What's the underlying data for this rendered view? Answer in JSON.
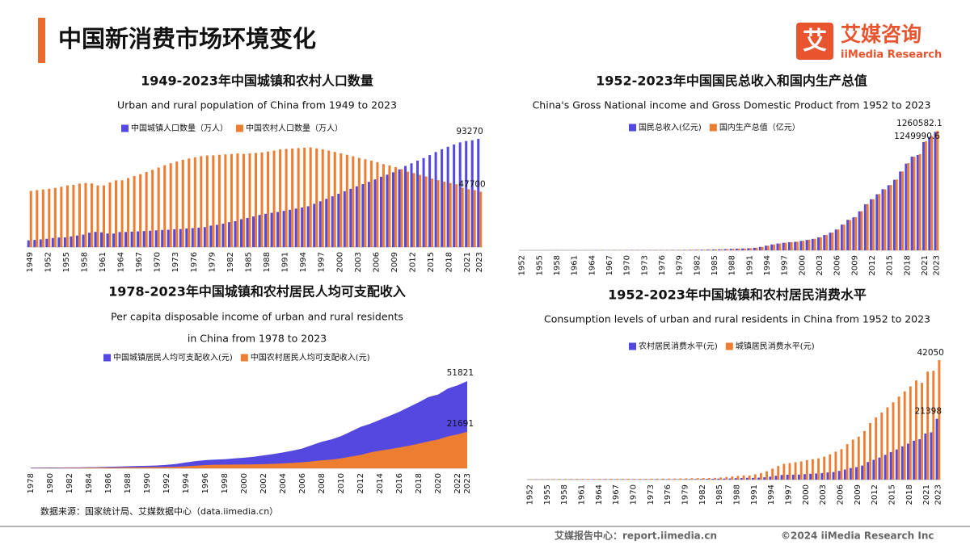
{
  "header": {
    "title": "中国新消费市场环境变化"
  },
  "logo": {
    "mark": "艾",
    "name": "艾媒咨询",
    "en": "iiMedia Research"
  },
  "source": "数据来源：国家统计局、艾媒数据中心（data.iimedia.cn）",
  "footer": {
    "left": "艾媒报告中心：report.iimedia.cn",
    "right": "©2024  iiMedia Research  Inc"
  },
  "chart_data": [
    {
      "type": "bar",
      "title": "1949-2023年中国城镇和农村人口数量",
      "subtitle": [
        "Urban and rural population of China from 1949 to 2023"
      ],
      "categories": [
        "1949",
        null,
        null,
        "1952",
        null,
        null,
        "1955",
        null,
        null,
        "1958",
        null,
        null,
        "1961",
        null,
        null,
        "1964",
        null,
        null,
        "1967",
        null,
        null,
        "1970",
        null,
        null,
        "1973",
        null,
        null,
        "1976",
        null,
        null,
        "1979",
        null,
        null,
        "1982",
        null,
        null,
        "1985",
        null,
        null,
        "1988",
        null,
        null,
        "1991",
        null,
        null,
        "1994",
        null,
        null,
        "1997",
        null,
        null,
        "2000",
        null,
        null,
        "2003",
        null,
        null,
        "2006",
        null,
        null,
        "2009",
        null,
        null,
        "2012",
        null,
        null,
        "2015",
        null,
        null,
        "2018",
        null,
        null,
        "2021",
        null,
        "2023"
      ],
      "series": [
        {
          "name": "中国城镇人口数量（万人）",
          "color": "#5448e0",
          "values": [
            5765,
            6169,
            6632,
            7163,
            7826,
            8249,
            8285,
            9185,
            9949,
            10721,
            12371,
            13073,
            12707,
            11659,
            11646,
            12950,
            13045,
            13313,
            13548,
            13838,
            14117,
            14424,
            14711,
            14935,
            15345,
            15595,
            16030,
            16341,
            16669,
            17245,
            18495,
            19140,
            20171,
            21480,
            22274,
            24017,
            25094,
            26366,
            27674,
            28661,
            29540,
            30195,
            31203,
            32175,
            33173,
            34169,
            35174,
            37304,
            39449,
            41608,
            43748,
            45906,
            48064,
            50212,
            52376,
            54283,
            56212,
            58288,
            60633,
            62403,
            64512,
            66978,
            69927,
            72175,
            74502,
            76738,
            79302,
            81924,
            84343,
            86433,
            88426,
            90220,
            91425,
            92071,
            93270
          ]
        },
        {
          "name": "中国农村人口数量（万人）",
          "color": "#ed7d31",
          "values": [
            48402,
            49106,
            49668,
            50319,
            50970,
            52017,
            53180,
            53643,
            54704,
            55273,
            54836,
            53134,
            53152,
            55636,
            57526,
            57549,
            59493,
            61229,
            62820,
            64696,
            66554,
            68568,
            70518,
            72242,
            73866,
            75264,
            76390,
            77376,
            78305,
            79014,
            79047,
            79565,
            79901,
            80174,
            80734,
            80340,
            80757,
            81141,
            81626,
            82365,
            83164,
            84138,
            84620,
            84996,
            85344,
            85681,
            85947,
            85085,
            84177,
            83153,
            82038,
            80837,
            79563,
            78241,
            76851,
            75705,
            74544,
            73160,
            71496,
            70399,
            68938,
            67113,
            64989,
            63747,
            62224,
            60908,
            59024,
            57661,
            56401,
            55162,
            54108,
            50992,
            49835,
            49104,
            47700
          ]
        }
      ]
    },
    {
      "type": "bar",
      "title": "1952-2023年中国国民总收入和国内生产总值",
      "subtitle": [
        "China's Gross National income and Gross Domestic Product from 1952 to 2023"
      ],
      "categories": [
        "1952",
        null,
        null,
        "1955",
        null,
        null,
        "1958",
        null,
        null,
        "1961",
        null,
        null,
        "1964",
        null,
        null,
        "1967",
        null,
        null,
        "1970",
        null,
        null,
        "1973",
        null,
        null,
        "1976",
        null,
        null,
        "1979",
        null,
        null,
        "1982",
        null,
        null,
        "1985",
        null,
        null,
        "1988",
        null,
        null,
        "1991",
        null,
        null,
        "1994",
        null,
        null,
        "1997",
        null,
        null,
        "2000",
        null,
        null,
        "2003",
        null,
        null,
        "2006",
        null,
        null,
        "2009",
        null,
        null,
        "2012",
        null,
        null,
        "2015",
        null,
        null,
        "2018",
        null,
        null,
        "2021",
        null,
        "2023"
      ],
      "series": [
        {
          "name": "国民总收入(亿元)",
          "color": "#5448e0",
          "values": [
            679,
            824,
            859,
            910,
            1028,
            1069,
            1308,
            1440,
            1457,
            1220,
            1150,
            1233,
            1454,
            1716,
            1868,
            1773,
            1723,
            1937,
            2253,
            2427,
            2518,
            2721,
            2790,
            2997,
            2944,
            3202,
            3679,
            4101,
            4588,
            4933,
            5374,
            6021,
            7277,
            9101,
            10362,
            12164,
            15175,
            17180,
            18873,
            22006,
            27195,
            35673,
            48638,
            61340,
            71814,
            79715,
            85196,
            89677,
            99066,
            109276,
            120480,
            136576,
            161415,
            185999,
            219029,
            270704,
            321229,
            347934,
            411265,
            484753,
            539117,
            590422,
            644791,
            686256,
            743585,
            831381,
            914327,
            988529,
            1005451,
            1141231,
            1197250,
            1249990.6
          ]
        },
        {
          "name": "国内生产总值（亿元）",
          "color": "#ed7d31",
          "values": [
            679,
            824,
            859,
            911,
            1030,
            1071,
            1312,
            1447,
            1470,
            1232,
            1162,
            1248,
            1470,
            1734,
            1889,
            1794,
            1745,
            1946,
            2280,
            2457,
            2552,
            2756,
            2828,
            3040,
            2989,
            3250,
            3679,
            4101,
            4588,
            4936,
            5373,
            6021,
            7279,
            9099,
            10376,
            12175,
            15180,
            17180,
            18873,
            22006,
            27195,
            35673,
            48638,
            61340,
            71814,
            79715,
            85196,
            90564,
            100280,
            110863,
            121717,
            137422,
            161840,
            187319,
            219439,
            270092,
            319245,
            348518,
            412119,
            487940,
            538580,
            592963,
            643563,
            688858,
            746395,
            832036,
            919281,
            986515,
            1013567,
            1149237,
            1204724,
            1260582.1
          ]
        }
      ]
    },
    {
      "type": "area",
      "title": "1978-2023年中国城镇和农村居民人均可支配收入",
      "subtitle": [
        "Per capita disposable income of urban and rural residents",
        "in China from 1978 to 2023"
      ],
      "categories": [
        "1978",
        null,
        "1980",
        null,
        "1982",
        null,
        "1984",
        null,
        "1986",
        null,
        "1988",
        null,
        "1990",
        null,
        "1992",
        null,
        "1994",
        null,
        "1996",
        null,
        "1998",
        null,
        "2000",
        null,
        "2002",
        null,
        "2004",
        null,
        "2006",
        null,
        "2008",
        null,
        "2010",
        null,
        "2012",
        null,
        "2014",
        null,
        "2016",
        null,
        "2018",
        null,
        "2020",
        null,
        "2022",
        "2023"
      ],
      "series": [
        {
          "name": "中国城镇居民人均可支配收入(元)",
          "color": "#5448e0",
          "values": [
            343,
            405,
            478,
            500,
            535,
            565,
            652,
            739,
            900,
            1002,
            1180,
            1374,
            1510,
            1701,
            2027,
            2577,
            3496,
            4283,
            4839,
            5160,
            5425,
            5854,
            6280,
            6860,
            7703,
            8472,
            9422,
            10493,
            11759,
            13786,
            15781,
            17175,
            19109,
            21810,
            24565,
            26467,
            28844,
            31195,
            33616,
            36396,
            39251,
            42359,
            43834,
            47412,
            49283,
            51821
          ]
        },
        {
          "name": "中国农村居民人均可支配收入(元)",
          "color": "#ed7d31",
          "values": [
            134,
            160,
            191,
            223,
            270,
            310,
            355,
            398,
            424,
            463,
            545,
            602,
            686,
            709,
            784,
            922,
            1221,
            1578,
            1926,
            2090,
            2162,
            2210,
            2253,
            2366,
            2476,
            2622,
            2936,
            3255,
            3587,
            4140,
            4761,
            5153,
            5919,
            6977,
            7917,
            9430,
            10489,
            11422,
            12363,
            13432,
            14617,
            16021,
            17131,
            18931,
            20133,
            21691
          ]
        }
      ]
    },
    {
      "type": "bar",
      "title": "1952-2023年中国城镇和农村居民消费水平",
      "subtitle": [
        "Consumption levels of urban and rural residents in China from 1952 to 2023"
      ],
      "categories": [
        "1952",
        null,
        null,
        "1955",
        null,
        null,
        "1958",
        null,
        null,
        "1961",
        null,
        null,
        "1964",
        null,
        null,
        "1967",
        null,
        null,
        "1970",
        null,
        null,
        "1973",
        null,
        null,
        "1976",
        null,
        null,
        "1979",
        null,
        null,
        "1982",
        null,
        null,
        "1985",
        null,
        null,
        "1988",
        null,
        null,
        "1991",
        null,
        null,
        "1994",
        null,
        null,
        "1997",
        null,
        null,
        "2000",
        null,
        null,
        "2003",
        null,
        null,
        "2006",
        null,
        null,
        "2009",
        null,
        null,
        "2012",
        null,
        null,
        "2015",
        null,
        null,
        "2018",
        null,
        null,
        "2021",
        null,
        "2023"
      ],
      "series": [
        {
          "name": "农村居民消费水平(元)",
          "color": "#5448e0",
          "values": [
            65,
            72,
            72,
            76,
            78,
            79,
            83,
            65,
            68,
            82,
            88,
            96,
            100,
            107,
            110,
            114,
            111,
            113,
            114,
            116,
            116,
            123,
            123,
            124,
            125,
            124,
            138,
            159,
            178,
            201,
            223,
            250,
            287,
            347,
            376,
            417,
            508,
            553,
            627,
            602,
            688,
            805,
            1038,
            1344,
            1626,
            1722,
            1730,
            1766,
            1917,
            2032,
            2157,
            2292,
            2521,
            2657,
            3057,
            3538,
            4065,
            4402,
            4941,
            6187,
            6964,
            7773,
            8711,
            9679,
            10609,
            11704,
            12660,
            13680,
            14231,
            16218,
            16632,
            21398
          ]
        },
        {
          "name": "城镇居民消费水平(元)",
          "color": "#ed7d31",
          "values": [
            148,
            180,
            177,
            189,
            200,
            222,
            232,
            241,
            252,
            243,
            226,
            235,
            252,
            259,
            262,
            269,
            264,
            265,
            261,
            267,
            280,
            292,
            302,
            324,
            340,
            360,
            405,
            425,
            490,
            521,
            536,
            558,
            618,
            750,
            900,
            1071,
            1311,
            1466,
            1404,
            1840,
            2262,
            2924,
            3852,
            4769,
            5532,
            5823,
            6109,
            6405,
            6850,
            7161,
            7486,
            8060,
            8912,
            9832,
            10739,
            12480,
            14061,
            15127,
            17104,
            19912,
            21861,
            23609,
            25424,
            27210,
            29219,
            31032,
            32815,
            34900,
            34043,
            37994,
            38289,
            42050
          ]
        }
      ]
    }
  ]
}
